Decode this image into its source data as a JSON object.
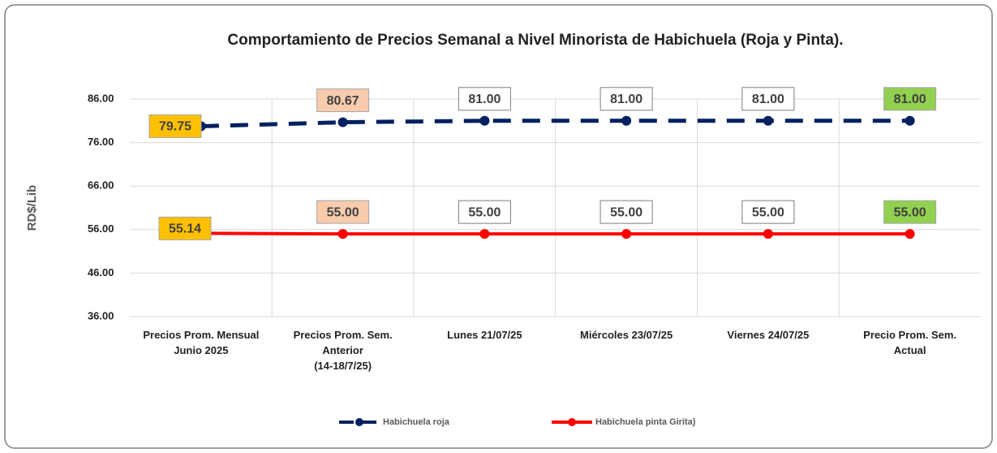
{
  "chart_data": {
    "type": "line",
    "title": "Comportamiento de Precios Semanal a Nivel Minorista de Habichuela (Roja  y Pinta).",
    "ylabel": "RD$/Lib",
    "categories": [
      "Precios Prom. Mensual\nJunio 2025",
      "Precios Prom. Sem.\nAnterior\n(14-18/7/25)",
      "Lunes  21/07/25",
      "Miércoles 23/07/25",
      "Viernes 24/07/25",
      "Precio Prom. Sem.\nActual"
    ],
    "series": [
      {
        "name": "Habichuela roja",
        "color": "#002060",
        "dashed": true,
        "values": [
          79.75,
          80.67,
          81,
          81,
          81,
          81
        ],
        "value_labels": [
          "79.75",
          "80.67",
          "81.00",
          "81.00",
          "81.00",
          "81.00"
        ]
      },
      {
        "name": "Habichuela pinta  Girita)",
        "color": "#ff0000",
        "dashed": false,
        "values": [
          55.14,
          55,
          55,
          55,
          55,
          55
        ],
        "value_labels": [
          "55.14",
          "55.00",
          "55.00",
          "55.00",
          "55.00",
          "55.00"
        ]
      }
    ],
    "label_colors": [
      "#ffc000",
      "#f8cbad",
      "#ffffff",
      "#ffffff",
      "#ffffff",
      "#92d050"
    ],
    "ylim": [
      36,
      86
    ],
    "yticks": [
      {
        "value": 36,
        "label": "36.00"
      },
      {
        "value": 46,
        "label": "46.00"
      },
      {
        "value": 56,
        "label": "56.00"
      },
      {
        "value": 66,
        "label": "66.00"
      },
      {
        "value": 76,
        "label": "76.00"
      },
      {
        "value": 86,
        "label": "86.00"
      }
    ],
    "grid": true,
    "legend": "bottom"
  }
}
